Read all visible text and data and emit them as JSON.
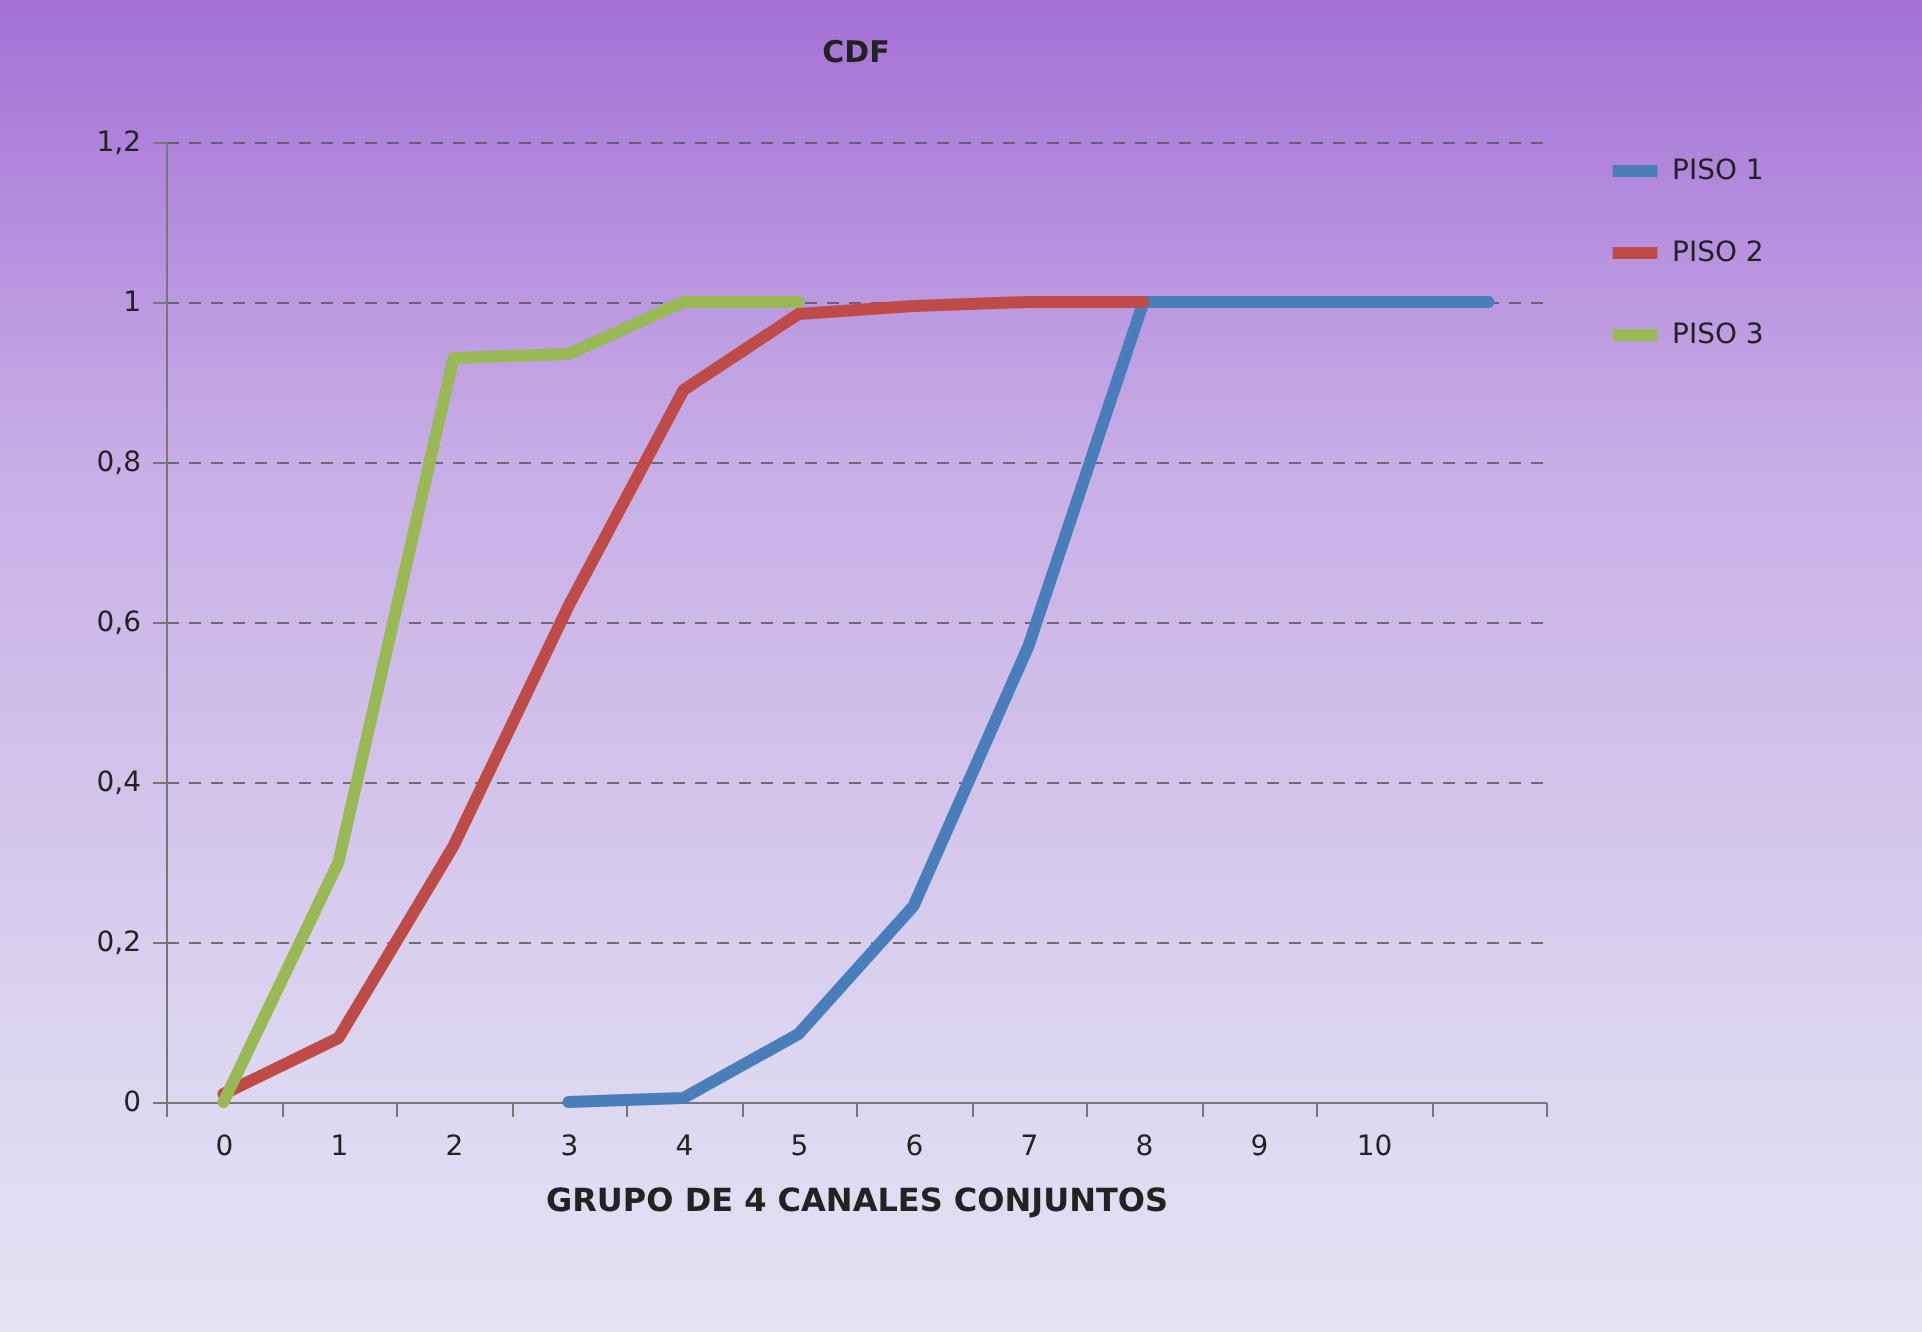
{
  "chart_data": {
    "type": "line",
    "title": "CDF",
    "xlabel": "GRUPO DE 4 CANALES CONJUNTOS",
    "categories": [
      "0",
      "1",
      "2",
      "3",
      "4",
      "5",
      "6",
      "7",
      "8",
      "9",
      "10",
      null
    ],
    "series": [
      {
        "name": "PISO 1",
        "color": "#4a7ebb",
        "values": [
          null,
          null,
          null,
          0,
          0.005,
          0.085,
          0.245,
          0.57,
          1,
          1,
          1,
          1
        ]
      },
      {
        "name": "PISO 2",
        "color": "#be4b48",
        "values": [
          0.01,
          0.08,
          0.32,
          0.62,
          0.89,
          0.985,
          0.995,
          1,
          1,
          null,
          null,
          null
        ]
      },
      {
        "name": "PISO 3",
        "color": "#98b954",
        "values": [
          0,
          0.3,
          0.93,
          0.935,
          1,
          1,
          null,
          null,
          null,
          null,
          null,
          null
        ]
      }
    ],
    "ylim": [
      0,
      1.2
    ],
    "yticks": [
      0,
      {
        "value": 0.2,
        "label": "0,2"
      },
      {
        "value": 0.4,
        "label": "0,4"
      },
      {
        "value": 0.6,
        "label": "0,6"
      },
      {
        "value": 0.8,
        "label": "0,8"
      },
      1,
      {
        "value": 1.2,
        "label": "1,2"
      }
    ],
    "grid": "y",
    "legend": "right"
  }
}
